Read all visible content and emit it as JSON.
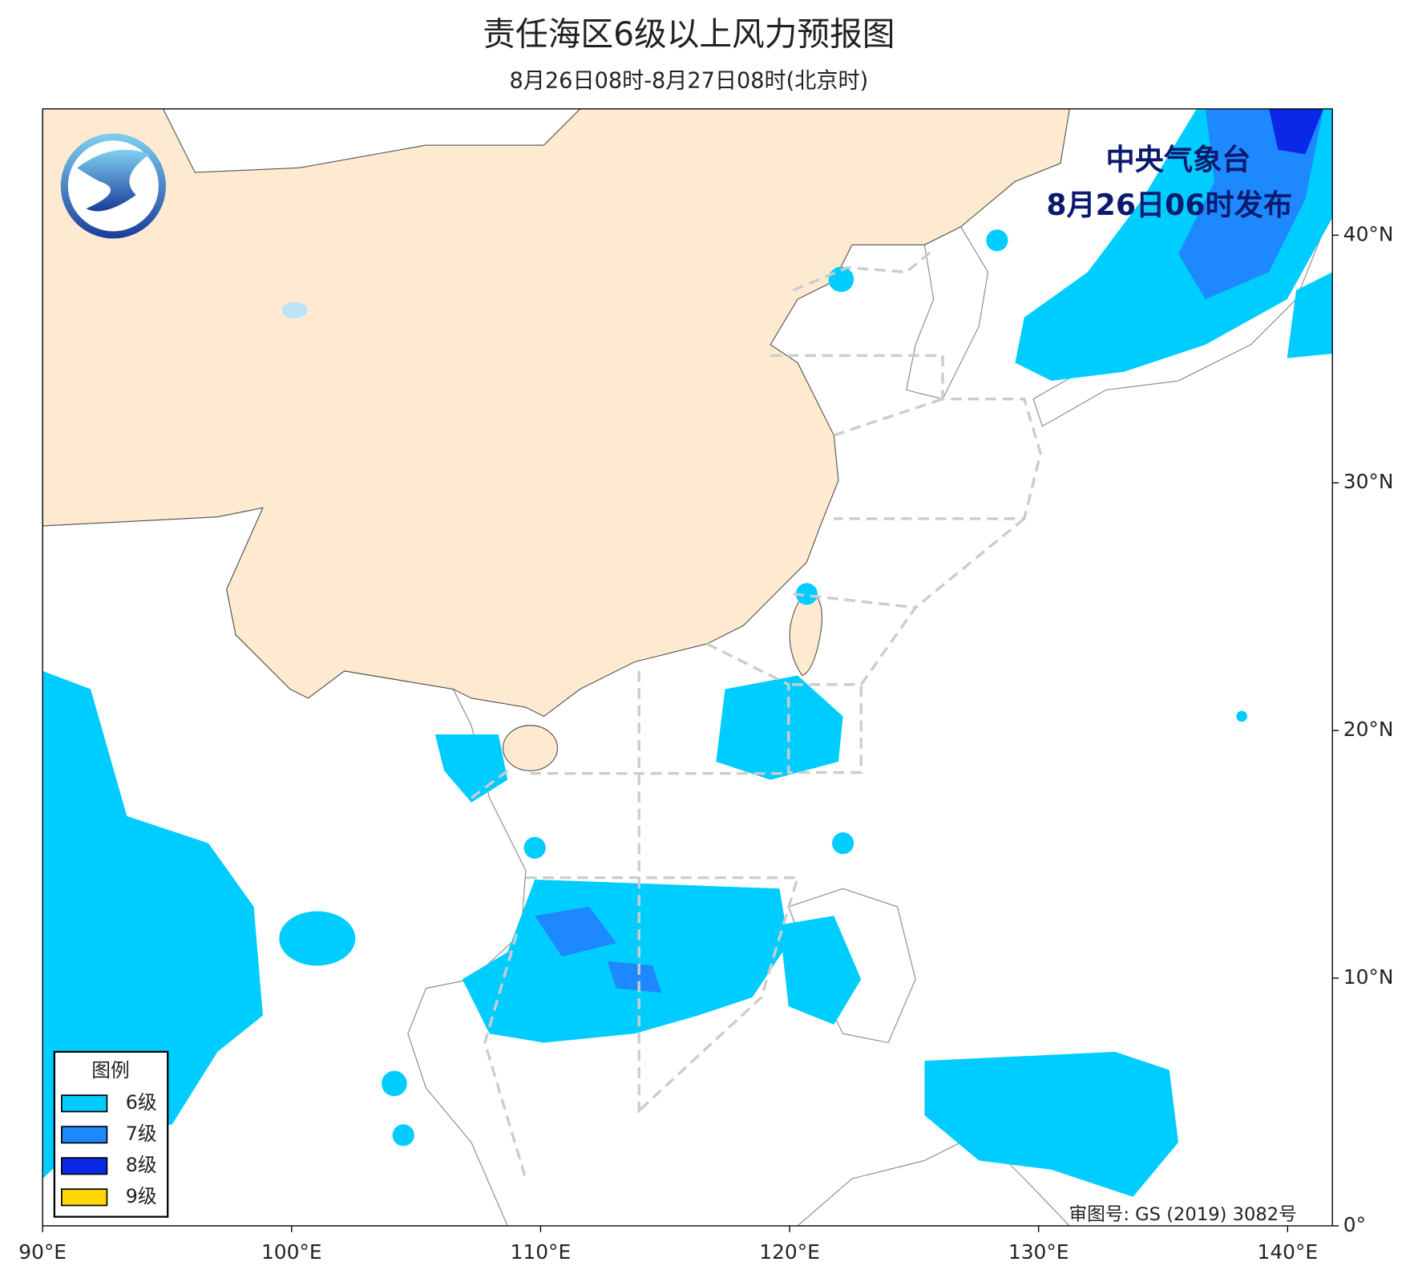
{
  "map": {
    "title": "责任海区6级以上风力预报图",
    "subtitle": "8月26日08时-8月27日08时(北京时)",
    "issuer": "中央气象台",
    "issue_time": "8月26日06时发布",
    "approval": "审图号: GS (2019) 3082号",
    "xlim": [
      90,
      141.8
    ],
    "ylim": [
      0,
      45.1
    ],
    "xticks": [
      {
        "value": 90,
        "label": "90°E"
      },
      {
        "value": 100,
        "label": "100°E"
      },
      {
        "value": 110,
        "label": "110°E"
      },
      {
        "value": 120,
        "label": "120°E"
      },
      {
        "value": 130,
        "label": "130°E"
      },
      {
        "value": 140,
        "label": "140°E"
      }
    ],
    "yticks": [
      {
        "value": 0,
        "label": "0°"
      },
      {
        "value": 10,
        "label": "10°N"
      },
      {
        "value": 20,
        "label": "20°N"
      },
      {
        "value": 30,
        "label": "30°N"
      },
      {
        "value": 40,
        "label": "40°N"
      }
    ],
    "legend": {
      "title": "图例",
      "items": [
        {
          "label": "6级",
          "color": "#00cdff"
        },
        {
          "label": "7级",
          "color": "#1e88ff"
        },
        {
          "label": "8级",
          "color": "#0a28e6"
        },
        {
          "label": "9级",
          "color": "#ffd700"
        }
      ]
    }
  }
}
